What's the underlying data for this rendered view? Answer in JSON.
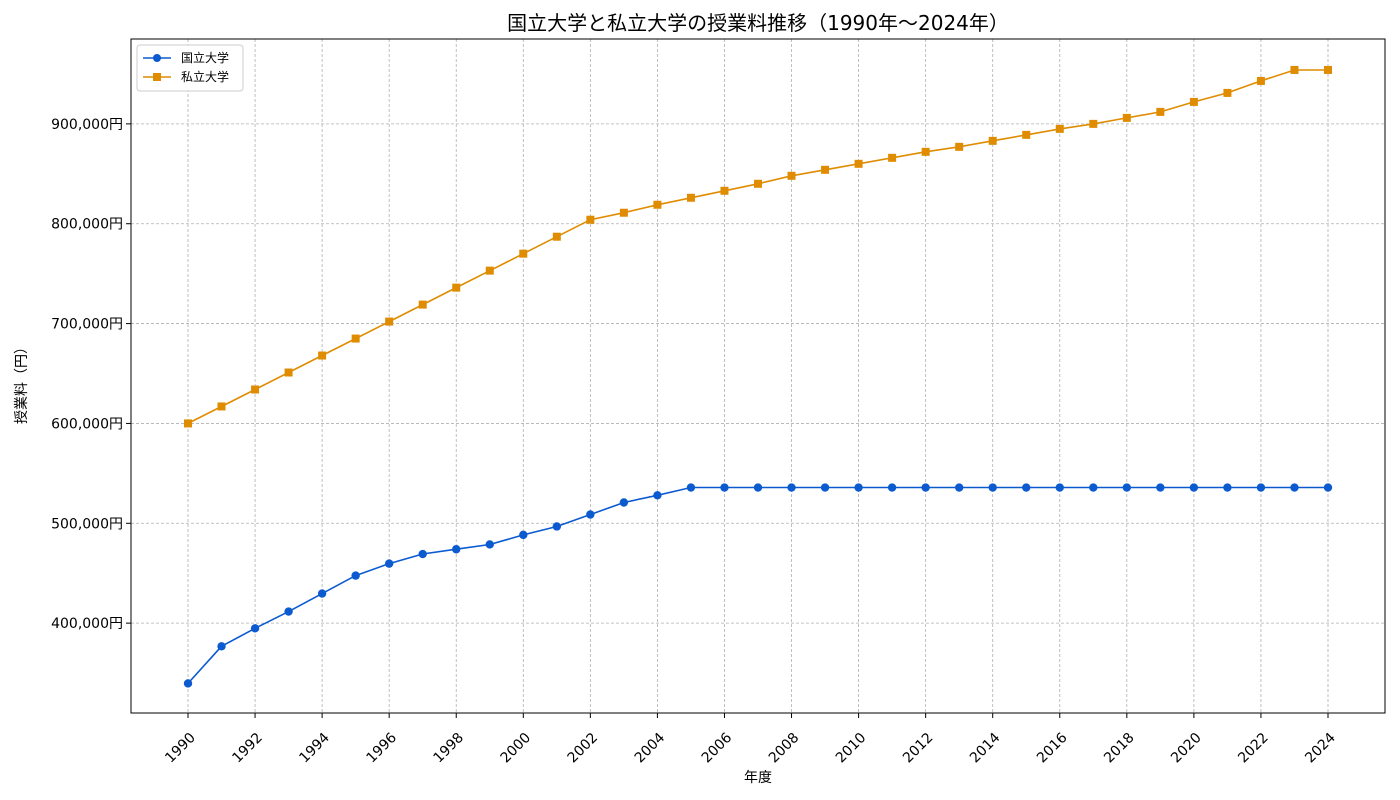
{
  "chart_data": {
    "type": "line",
    "title": "国立大学と私立大学の授業料推移（1990年〜2024年）",
    "xlabel": "年度",
    "ylabel": "授業料（円）",
    "x": [
      1990,
      1991,
      1992,
      1993,
      1994,
      1995,
      1996,
      1997,
      1998,
      1999,
      2000,
      2001,
      2002,
      2003,
      2004,
      2005,
      2006,
      2007,
      2008,
      2009,
      2010,
      2011,
      2012,
      2013,
      2014,
      2015,
      2016,
      2017,
      2018,
      2019,
      2020,
      2021,
      2022,
      2023,
      2024
    ],
    "x_ticks": [
      "1990",
      "1992",
      "1994",
      "1996",
      "1998",
      "2000",
      "2002",
      "2004",
      "2006",
      "2008",
      "2010",
      "2012",
      "2014",
      "2016",
      "2018",
      "2020",
      "2022",
      "2024"
    ],
    "y_ticks": [
      "400,000円",
      "500,000円",
      "600,000円",
      "700,000円",
      "800,000円",
      "900,000円"
    ],
    "y_tick_values": [
      400000,
      500000,
      600000,
      700000,
      800000,
      900000
    ],
    "xlim": [
      1988.3,
      2025.7
    ],
    "ylim": [
      310000,
      985000
    ],
    "grid": true,
    "legend_position": "top-left",
    "series": [
      {
        "name": "国立大学",
        "color": "#0b5ad0",
        "marker": "circle",
        "values": [
          339600,
          376800,
          394800,
          411600,
          429600,
          447600,
          459600,
          469200,
          474000,
          478800,
          488400,
          496800,
          508800,
          520800,
          528000,
          535800,
          535800,
          535800,
          535800,
          535800,
          535800,
          535800,
          535800,
          535800,
          535800,
          535800,
          535800,
          535800,
          535800,
          535800,
          535800,
          535800,
          535800,
          535800,
          535800
        ]
      },
      {
        "name": "私立大学",
        "color": "#e08c00",
        "marker": "square",
        "values": [
          600000,
          617000,
          634000,
          651000,
          668000,
          685000,
          702000,
          719000,
          736000,
          753000,
          770000,
          787000,
          804000,
          811000,
          819000,
          826000,
          833000,
          840000,
          848000,
          854000,
          860000,
          866000,
          872000,
          877000,
          883000,
          889000,
          895000,
          900000,
          906000,
          912000,
          922000,
          931000,
          943000,
          954000,
          954000
        ]
      }
    ]
  }
}
